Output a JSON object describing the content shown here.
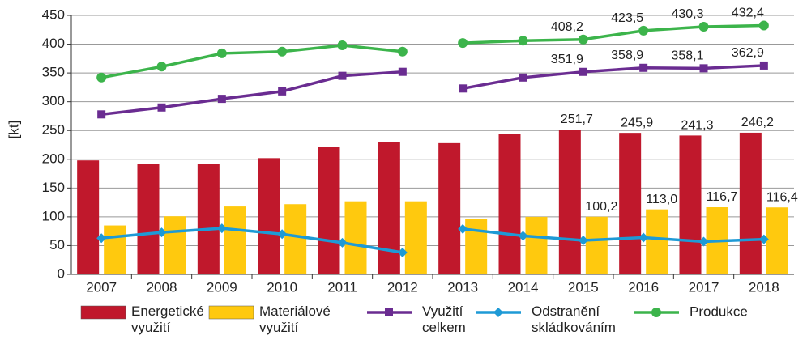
{
  "chart_data": {
    "type": "bar_line",
    "y_label": "[kt]",
    "categories": [
      "2007",
      "2008",
      "2009",
      "2010",
      "2011",
      "2012",
      "2013",
      "2014",
      "2015",
      "2016",
      "2017",
      "2018"
    ],
    "ylim": [
      0,
      450
    ],
    "yticks": [
      0,
      50,
      100,
      150,
      200,
      250,
      300,
      350,
      400,
      450
    ],
    "grid": true,
    "legend": "bottom",
    "line_break_after": "2012",
    "series": [
      {
        "name": "Energetické využití",
        "kind": "bar",
        "color": "#c0182c",
        "values": [
          198,
          192,
          192,
          202,
          222,
          230,
          228,
          244,
          251.7,
          245.9,
          241.3,
          246.2
        ],
        "value_labels": [
          null,
          null,
          null,
          null,
          null,
          null,
          null,
          null,
          "251,7",
          "245,9",
          "241,3",
          "246,2"
        ]
      },
      {
        "name": "Materiálové využití",
        "kind": "bar",
        "color": "#ffc90e",
        "values": [
          85,
          101,
          118,
          122,
          127,
          127,
          97,
          100,
          100.2,
          113.0,
          116.7,
          116.4
        ],
        "value_labels": [
          null,
          null,
          null,
          null,
          null,
          null,
          null,
          null,
          "100,2",
          "113,0",
          "116,7",
          "116,4"
        ]
      },
      {
        "name": "Využití celkem",
        "kind": "line",
        "marker": "square",
        "color": "#6a2c91",
        "values": [
          278,
          290,
          305,
          318,
          345,
          352,
          323,
          342,
          351.9,
          358.9,
          358.1,
          362.9
        ],
        "value_labels": [
          null,
          null,
          null,
          null,
          null,
          null,
          null,
          null,
          "351,9",
          "358,9",
          "358,1",
          "362,9"
        ]
      },
      {
        "name": "Odstranění skládkováním",
        "kind": "line",
        "marker": "diamond",
        "color": "#1e9ad6",
        "values": [
          63,
          73,
          80,
          70,
          55,
          38,
          79,
          67,
          59,
          64,
          57,
          61
        ]
      },
      {
        "name": "Produkce",
        "kind": "line",
        "marker": "circle",
        "color": "#3cb44b",
        "values": [
          342,
          361,
          384,
          387,
          398,
          387,
          402,
          406,
          408.2,
          423.5,
          430.3,
          432.4
        ],
        "value_labels": [
          null,
          null,
          null,
          null,
          null,
          null,
          null,
          null,
          "408,2",
          "423,5",
          "430,3",
          "432,4"
        ]
      }
    ]
  }
}
